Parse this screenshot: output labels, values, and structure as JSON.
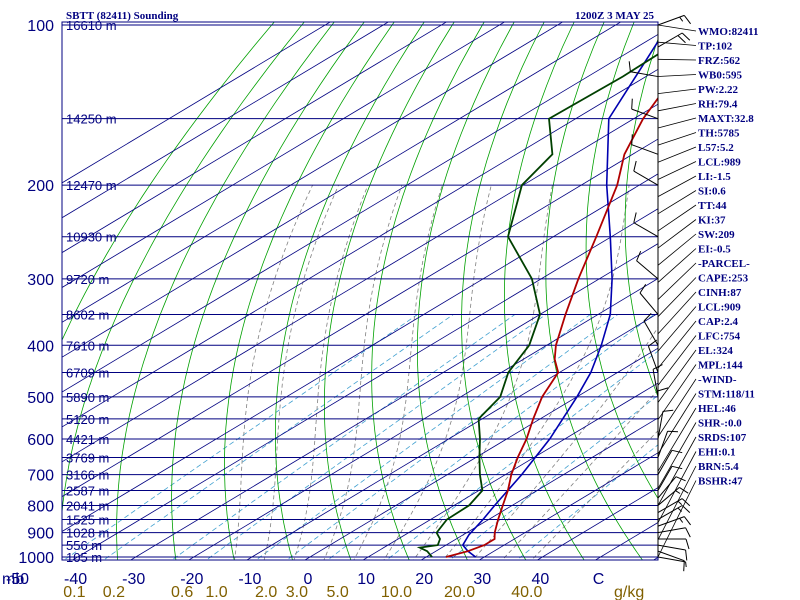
{
  "header": {
    "station": "SBTT (82411) Sounding",
    "time": "1200Z  3 MAY 25"
  },
  "colors": {
    "isobar": "#000080",
    "skew_isotherm": "#000080",
    "dry_adiabat": "#00a000",
    "moist_adiabat": "#808080",
    "mixing_ratio": "#40a0d0",
    "temperature": "#b00000",
    "dewpoint": "#004000",
    "parcel": "#0000b0",
    "temp_tick_text": "#000080",
    "mixing_tick_text": "#806000",
    "wind": "#000000"
  },
  "chart_data": {
    "type": "line",
    "title": "SBTT (82411) Sounding",
    "valid_time": "1200Z  3 MAY 25",
    "x_label": "mb",
    "mixing_ratio_unit": "g/kg",
    "pressure_range_mb": [
      100,
      1000
    ],
    "temperature_range_c": [
      -50,
      50
    ],
    "pressure_ticks": [
      {
        "label": "100",
        "p": 100
      },
      {
        "label": "200",
        "p": 200
      },
      {
        "label": "300",
        "p": 300
      },
      {
        "label": "400",
        "p": 400
      },
      {
        "label": "500",
        "p": 500
      },
      {
        "label": "600",
        "p": 600
      },
      {
        "label": "700",
        "p": 700
      },
      {
        "label": "800",
        "p": 800
      },
      {
        "label": "900",
        "p": 900
      },
      {
        "label": "1000",
        "p": 1000
      }
    ],
    "heights": [
      {
        "label": "16610 m",
        "p": 100
      },
      {
        "label": "14250 m",
        "p": 150
      },
      {
        "label": "12470 m",
        "p": 200
      },
      {
        "label": "10930 m",
        "p": 250
      },
      {
        "label": "9720 m",
        "p": 300
      },
      {
        "label": "8602 m",
        "p": 350
      },
      {
        "label": "7610 m",
        "p": 400
      },
      {
        "label": "6709 m",
        "p": 450
      },
      {
        "label": "5890 m",
        "p": 500
      },
      {
        "label": "5120 m",
        "p": 550
      },
      {
        "label": "4421 m",
        "p": 600
      },
      {
        "label": "3769 m",
        "p": 650
      },
      {
        "label": "3166 m",
        "p": 700
      },
      {
        "label": "2587 m",
        "p": 750
      },
      {
        "label": "2041 m",
        "p": 800
      },
      {
        "label": "1525 m",
        "p": 850
      },
      {
        "label": "1028 m",
        "p": 900
      },
      {
        "label": "556 m",
        "p": 950
      },
      {
        "label": "105 m",
        "p": 1000
      }
    ],
    "temperature_ticks": [
      {
        "label": "-50",
        "t": -50
      },
      {
        "label": "-40",
        "t": -40
      },
      {
        "label": "-30",
        "t": -30
      },
      {
        "label": "-20",
        "t": -20
      },
      {
        "label": "-10",
        "t": -10
      },
      {
        "label": "0",
        "t": 0
      },
      {
        "label": "10",
        "t": 10
      },
      {
        "label": "20",
        "t": 20
      },
      {
        "label": "30",
        "t": 30
      },
      {
        "label": "40",
        "t": 40
      },
      {
        "label": "C",
        "t": 50
      }
    ],
    "mixing_ratio_ticks": [
      {
        "label": "0.1",
        "w": 0.1
      },
      {
        "label": "0.2",
        "w": 0.2
      },
      {
        "label": "0.6",
        "w": 0.6
      },
      {
        "label": "1.0",
        "w": 1.0
      },
      {
        "label": "2.0",
        "w": 2.0
      },
      {
        "label": "3.0",
        "w": 3.0
      },
      {
        "label": "5.0",
        "w": 5.0
      },
      {
        "label": "10.0",
        "w": 10.0
      },
      {
        "label": "20.0",
        "w": 20.0
      },
      {
        "label": "40.0",
        "w": 40.0
      }
    ],
    "temperature_profile": [
      {
        "p": 1000,
        "t": 23.4
      },
      {
        "p": 975,
        "t": 25.5
      },
      {
        "p": 950,
        "t": 26.6
      },
      {
        "p": 925,
        "t": 26.6
      },
      {
        "p": 900,
        "t": 24.8
      },
      {
        "p": 850,
        "t": 21.6
      },
      {
        "p": 800,
        "t": 18.4
      },
      {
        "p": 750,
        "t": 15.0
      },
      {
        "p": 700,
        "t": 11.0
      },
      {
        "p": 650,
        "t": 7.2
      },
      {
        "p": 600,
        "t": 3.4
      },
      {
        "p": 550,
        "t": -1.2
      },
      {
        "p": 500,
        "t": -6.0
      },
      {
        "p": 450,
        "t": -10.2
      },
      {
        "p": 425,
        "t": -14.6
      },
      {
        "p": 400,
        "t": -18.4
      },
      {
        "p": 350,
        "t": -25.6
      },
      {
        "p": 300,
        "t": -33.6
      },
      {
        "p": 250,
        "t": -42.6
      },
      {
        "p": 200,
        "t": -53.8
      },
      {
        "p": 175,
        "t": -61.4
      },
      {
        "p": 150,
        "t": -68.4
      },
      {
        "p": 125,
        "t": -75.2
      },
      {
        "p": 110,
        "t": -77.0
      },
      {
        "p": 100,
        "t": -75.8
      },
      {
        "p": 95,
        "t": -73.0
      }
    ],
    "dewpoint_profile": [
      {
        "p": 1000,
        "t": 21.0
      },
      {
        "p": 975,
        "t": 18.5
      },
      {
        "p": 960,
        "t": 16.2
      },
      {
        "p": 950,
        "t": 18.6
      },
      {
        "p": 925,
        "t": 17.2
      },
      {
        "p": 900,
        "t": 14.8
      },
      {
        "p": 850,
        "t": 12.8
      },
      {
        "p": 800,
        "t": 12.6
      },
      {
        "p": 750,
        "t": 10.6
      },
      {
        "p": 700,
        "t": 5.6
      },
      {
        "p": 650,
        "t": 0.6
      },
      {
        "p": 600,
        "t": -4.6
      },
      {
        "p": 550,
        "t": -10.6
      },
      {
        "p": 500,
        "t": -13.2
      },
      {
        "p": 450,
        "t": -18.8
      },
      {
        "p": 400,
        "t": -23.0
      },
      {
        "p": 350,
        "t": -30.0
      },
      {
        "p": 300,
        "t": -41.6
      },
      {
        "p": 250,
        "t": -57.8
      },
      {
        "p": 200,
        "t": -70.2
      },
      {
        "p": 175,
        "t": -73.8
      },
      {
        "p": 150,
        "t": -84.6
      },
      {
        "p": 125,
        "t": -84.0
      },
      {
        "p": 110,
        "t": -84.4
      },
      {
        "p": 100,
        "t": -85.6
      },
      {
        "p": 95,
        "t": -87.6
      }
    ],
    "parcel_profile": [
      {
        "p": 1000,
        "t": 28.5
      },
      {
        "p": 975,
        "t": 25.5
      },
      {
        "p": 950,
        "t": 22.9
      },
      {
        "p": 909,
        "t": 21.0
      },
      {
        "p": 850,
        "t": 19.0
      },
      {
        "p": 800,
        "t": 17.0
      },
      {
        "p": 700,
        "t": 12.8
      },
      {
        "p": 600,
        "t": 7.4
      },
      {
        "p": 500,
        "t": 0.0
      },
      {
        "p": 450,
        "t": -4.6
      },
      {
        "p": 400,
        "t": -10.6
      },
      {
        "p": 350,
        "t": -17.9
      },
      {
        "p": 300,
        "t": -27.8
      },
      {
        "p": 250,
        "t": -40.2
      },
      {
        "p": 200,
        "t": -55.6
      },
      {
        "p": 150,
        "t": -74.3
      },
      {
        "p": 95,
        "t": -93.0
      }
    ],
    "wind_barbs": [
      {
        "p": 1000,
        "dir": 100,
        "spd": 5
      },
      {
        "p": 975,
        "dir": 110,
        "spd": 10
      },
      {
        "p": 950,
        "dir": 100,
        "spd": 10
      },
      {
        "p": 925,
        "dir": 90,
        "spd": 10
      },
      {
        "p": 900,
        "dir": 80,
        "spd": 10
      },
      {
        "p": 875,
        "dir": 70,
        "spd": 15
      },
      {
        "p": 850,
        "dir": 60,
        "spd": 15
      },
      {
        "p": 825,
        "dir": 60,
        "spd": 15
      },
      {
        "p": 800,
        "dir": 50,
        "spd": 15
      },
      {
        "p": 775,
        "dir": 40,
        "spd": 10
      },
      {
        "p": 750,
        "dir": 30,
        "spd": 10
      },
      {
        "p": 700,
        "dir": 30,
        "spd": 10
      },
      {
        "p": 650,
        "dir": 20,
        "spd": 10
      },
      {
        "p": 600,
        "dir": 10,
        "spd": 10
      },
      {
        "p": 550,
        "dir": 360,
        "spd": 10
      },
      {
        "p": 500,
        "dir": 350,
        "spd": 10
      },
      {
        "p": 450,
        "dir": 340,
        "spd": 10
      },
      {
        "p": 400,
        "dir": 330,
        "spd": 10
      },
      {
        "p": 350,
        "dir": 320,
        "spd": 10
      },
      {
        "p": 300,
        "dir": 310,
        "spd": 10
      },
      {
        "p": 250,
        "dir": 300,
        "spd": 10
      },
      {
        "p": 200,
        "dir": 300,
        "spd": 10
      },
      {
        "p": 175,
        "dir": 290,
        "spd": 10
      },
      {
        "p": 150,
        "dir": 290,
        "spd": 10
      },
      {
        "p": 125,
        "dir": 280,
        "spd": 10
      },
      {
        "p": 110,
        "dir": 60,
        "spd": 20
      },
      {
        "p": 100,
        "dir": 70,
        "spd": 15
      }
    ]
  },
  "indices": [
    "WMO:82411",
    "TP:102",
    "FRZ:562",
    "WB0:595",
    "PW:2.22",
    "RH:79.4",
    "MAXT:32.8",
    "TH:5785",
    "L57:5.2",
    "LCL:989",
    "LI:-1.5",
    "SI:0.6",
    "TT:44",
    "KI:37",
    "SW:209",
    "EI:-0.5",
    "-PARCEL-",
    "CAPE:253",
    "CINH:87",
    "LCL:909",
    "CAP:2.4",
    "LFC:754",
    "EL:324",
    "MPL:144",
    "-WIND-",
    "STM:118/11",
    "HEL:46",
    "SHR-:0.0",
    "SRDS:107",
    "EHI:0.1",
    "BRN:5.4",
    "BSHR:47"
  ]
}
